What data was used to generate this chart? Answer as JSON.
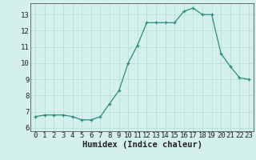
{
  "x": [
    0,
    1,
    2,
    3,
    4,
    5,
    6,
    7,
    8,
    9,
    10,
    11,
    12,
    13,
    14,
    15,
    16,
    17,
    18,
    19,
    20,
    21,
    22,
    23
  ],
  "y": [
    6.7,
    6.8,
    6.8,
    6.8,
    6.7,
    6.5,
    6.5,
    6.7,
    7.5,
    8.3,
    10.0,
    11.1,
    12.5,
    12.5,
    12.5,
    12.5,
    13.2,
    13.4,
    13.0,
    13.0,
    10.6,
    9.8,
    9.1,
    9.0
  ],
  "xlim": [
    -0.5,
    23.5
  ],
  "ylim": [
    5.8,
    13.7
  ],
  "yticks": [
    6,
    7,
    8,
    9,
    10,
    11,
    12,
    13
  ],
  "xticks": [
    0,
    1,
    2,
    3,
    4,
    5,
    6,
    7,
    8,
    9,
    10,
    11,
    12,
    13,
    14,
    15,
    16,
    17,
    18,
    19,
    20,
    21,
    22,
    23
  ],
  "xlabel": "Humidex (Indice chaleur)",
  "line_color": "#2d8c7a",
  "marker_color": "#2d8c7a",
  "bg_color": "#d4f0ec",
  "grid_color": "#b8ddd8",
  "tick_label_fontsize": 6.5,
  "xlabel_fontsize": 7.5
}
